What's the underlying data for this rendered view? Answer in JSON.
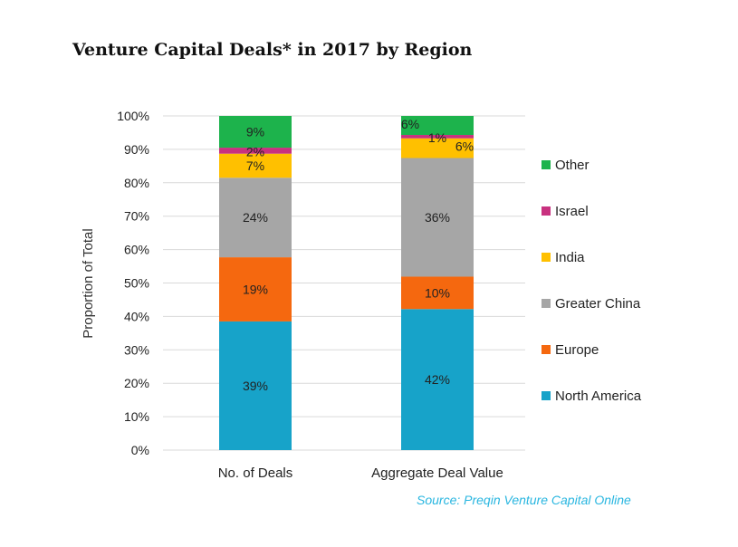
{
  "title": "Venture Capital Deals* in 2017 by Region",
  "source": "Source: Preqin Venture Capital Online",
  "chart_data": {
    "type": "bar",
    "stacked": true,
    "title": "Venture Capital Deals* in 2017 by Region",
    "xlabel": "",
    "ylabel": "Proportion of Total",
    "ylim": [
      0,
      100
    ],
    "y_ticks": [
      "0%",
      "10%",
      "20%",
      "30%",
      "40%",
      "50%",
      "60%",
      "70%",
      "80%",
      "90%",
      "100%"
    ],
    "categories": [
      "No. of Deals",
      "Aggregate Deal Value"
    ],
    "series": [
      {
        "name": "North America",
        "color": "#17a3c9",
        "values": [
          38.5,
          42.2
        ],
        "labels": [
          "39%",
          "42%"
        ]
      },
      {
        "name": "Europe",
        "color": "#f5680f",
        "values": [
          19.2,
          9.7
        ],
        "labels": [
          "19%",
          "10%"
        ]
      },
      {
        "name": "Greater China",
        "color": "#a6a6a6",
        "values": [
          23.8,
          35.5
        ],
        "labels": [
          "24%",
          "36%"
        ]
      },
      {
        "name": "India",
        "color": "#ffc000",
        "values": [
          7.2,
          5.9
        ],
        "labels": [
          "7%",
          "6%"
        ]
      },
      {
        "name": "Israel",
        "color": "#c8317f",
        "values": [
          1.8,
          1.0
        ],
        "labels": [
          "2%",
          "1%"
        ]
      },
      {
        "name": "Other",
        "color": "#1db34c",
        "values": [
          9.5,
          5.7
        ],
        "labels": [
          "9%",
          "6%"
        ]
      }
    ],
    "legend_position": "right",
    "grid": true
  }
}
